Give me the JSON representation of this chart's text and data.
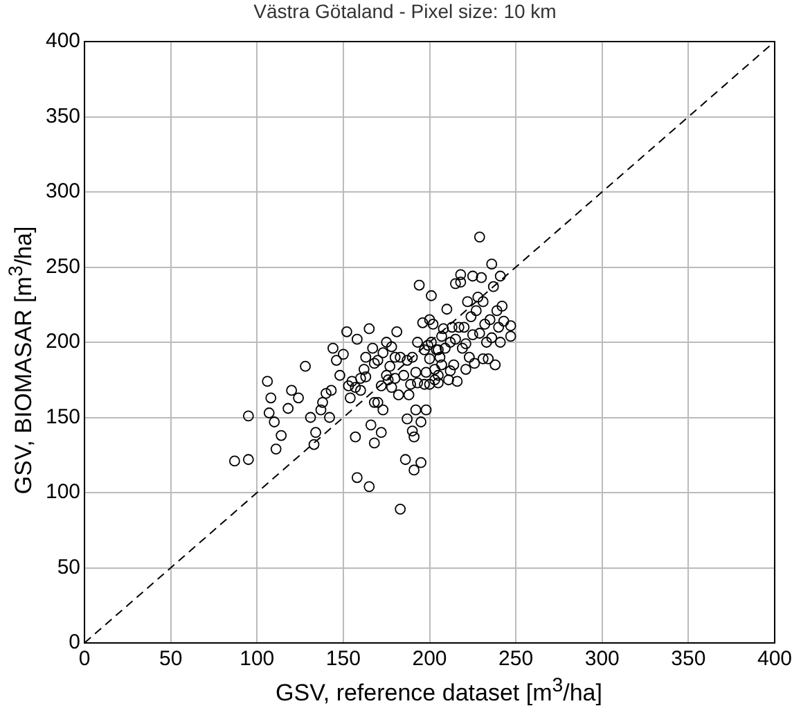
{
  "chart_data": {
    "type": "scatter",
    "title": "Västra Götaland - Pixel size: 10 km",
    "xlabel": "GSV, reference dataset   [m$^{3}$/ha]",
    "ylabel": "GSV, BIOMASAR   [m$^{3}$/ha]",
    "xlim": [
      0,
      400
    ],
    "ylim": [
      0,
      400
    ],
    "xticks": [
      0,
      50,
      100,
      150,
      200,
      250,
      300,
      350,
      400
    ],
    "yticks": [
      0,
      50,
      100,
      150,
      200,
      250,
      300,
      350,
      400
    ],
    "grid": true,
    "legend": false,
    "marker": "circle",
    "series": [
      {
        "type": "scatter",
        "color": "#000000",
        "x": [
          87,
          95,
          95,
          106,
          107,
          108,
          110,
          111,
          114,
          118,
          120,
          124,
          128,
          131,
          133,
          134,
          137,
          138,
          140,
          142,
          143,
          144,
          146,
          148,
          150,
          152,
          153,
          154,
          155,
          157,
          157,
          158,
          158,
          160,
          160,
          162,
          163,
          163,
          165,
          165,
          166,
          167,
          168,
          168,
          168,
          170,
          172,
          172,
          173,
          173,
          175,
          175,
          176,
          177,
          178,
          180,
          180,
          181,
          182,
          183,
          183,
          185,
          186,
          187,
          187,
          188,
          189,
          190,
          190,
          191,
          191,
          192,
          192,
          193,
          193,
          194,
          195,
          195,
          196,
          197,
          198,
          198,
          199,
          200,
          200,
          200,
          201,
          201,
          202,
          203,
          203,
          204,
          205,
          205,
          206,
          207,
          207,
          208,
          209,
          210,
          211,
          212,
          212,
          213,
          214,
          215,
          216,
          217,
          218,
          218,
          219,
          220,
          221,
          221,
          222,
          223,
          224,
          225,
          225,
          226,
          227,
          228,
          229,
          229,
          230,
          231,
          231,
          232,
          233,
          234,
          235,
          236,
          236,
          237,
          238,
          239,
          240,
          241,
          241,
          242,
          243,
          247,
          247,
          215,
          205,
          197,
          178,
          170
        ],
        "values": [
          121,
          122,
          151,
          174,
          153,
          163,
          147,
          129,
          138,
          156,
          168,
          163,
          184,
          150,
          132,
          140,
          155,
          160,
          166,
          150,
          168,
          196,
          188,
          178,
          192,
          207,
          171,
          163,
          174,
          170,
          137,
          110,
          202,
          168,
          176,
          182,
          190,
          177,
          104,
          209,
          145,
          196,
          133,
          160,
          186,
          188,
          171,
          140,
          155,
          193,
          200,
          178,
          175,
          184,
          197,
          190,
          176,
          207,
          165,
          89,
          190,
          178,
          122,
          149,
          188,
          165,
          172,
          190,
          141,
          115,
          137,
          155,
          180,
          200,
          173,
          238,
          120,
          147,
          213,
          195,
          180,
          155,
          198,
          172,
          189,
          215,
          231,
          200,
          212,
          182,
          175,
          195,
          178,
          173,
          190,
          204,
          185,
          209,
          196,
          222,
          175,
          181,
          200,
          210,
          185,
          202,
          174,
          210,
          245,
          240,
          196,
          210,
          182,
          199,
          227,
          190,
          217,
          205,
          244,
          186,
          221,
          230,
          206,
          270,
          243,
          189,
          227,
          212,
          200,
          189,
          215,
          252,
          203,
          237,
          185,
          221,
          210,
          200,
          244,
          224,
          214,
          204,
          211,
          239,
          195,
          172,
          170,
          160
        ]
      },
      {
        "type": "line",
        "color": "#000000",
        "line_style": "dashed",
        "marker": "none",
        "x": [
          0,
          400
        ],
        "values": [
          0,
          400
        ]
      }
    ]
  }
}
